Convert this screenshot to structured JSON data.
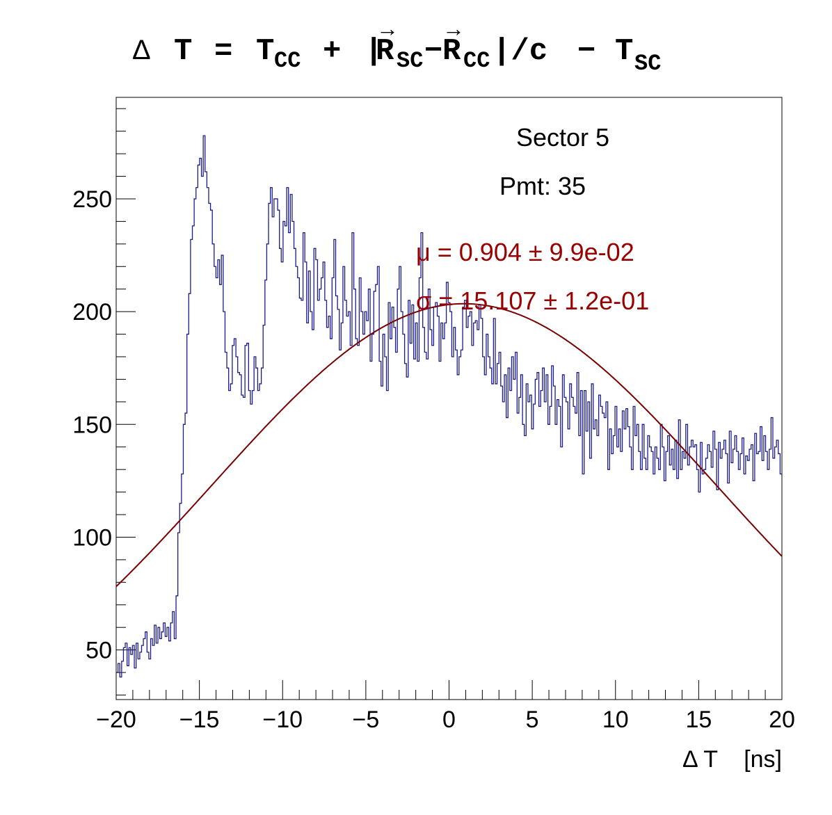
{
  "chart_data": {
    "type": "line",
    "title": {
      "delta": "Δ",
      "T": "T",
      "eq": "=",
      "tcc": "T",
      "tcc_sub": "CC",
      "plus": "+",
      "bar": "|",
      "r1": "R",
      "r1_sub": "SC",
      "minus1": "−",
      "r2": "R",
      "r2_sub": "CC",
      "overc": "|/c",
      "minus2": "−",
      "tsc": "T",
      "tsc_sub": "SC",
      "arrow": "→"
    },
    "xlabel": "Δ T    [ns]",
    "ylabel": "",
    "xlim": [
      -20,
      20
    ],
    "ylim": [
      28,
      295
    ],
    "xticks": [
      -20,
      -15,
      -10,
      -5,
      0,
      5,
      10,
      15,
      20
    ],
    "xtick_labels": [
      "−20",
      "−15",
      "−10",
      "−5",
      "0",
      "5",
      "10",
      "15",
      "20"
    ],
    "yticks": [
      50,
      100,
      150,
      200,
      250
    ],
    "ytick_labels": [
      "50",
      "100",
      "150",
      "200",
      "250"
    ],
    "grid": false,
    "annotations": {
      "sector": "Sector 5",
      "pmt": "Pmt: 35",
      "mu": "μ = 0.904 ± 9.9e-02",
      "sigma": "σ = 15.107 ± 1.2e-01"
    },
    "colors": {
      "histogram": "#1a1a8c",
      "fit": "#7a0000",
      "fit_text": "#990000",
      "axes": "#000000"
    },
    "series": [
      {
        "type": "step",
        "bin_edges": [
          -20,
          20
        ],
        "counts": [
          40,
          44,
          38,
          45,
          51,
          53,
          43,
          51,
          48,
          52,
          42,
          53,
          46,
          49,
          52,
          55,
          58,
          49,
          46,
          55,
          52,
          61,
          53,
          60,
          55,
          58,
          62,
          56,
          60,
          54,
          62,
          67,
          55,
          74,
          102,
          115,
          128,
          150,
          155,
          190,
          208,
          232,
          238,
          250,
          255,
          265,
          268,
          260,
          278,
          262,
          255,
          248,
          245,
          230,
          220,
          215,
          223,
          212,
          225,
          200,
          182,
          175,
          165,
          168,
          185,
          188,
          180,
          173,
          172,
          163,
          162,
          185,
          186,
          165,
          159,
          165,
          180,
          175,
          165,
          168,
          175,
          194,
          214,
          230,
          248,
          255,
          242,
          250,
          250,
          245,
          228,
          222,
          240,
          238,
          255,
          235,
          252,
          240,
          228,
          220,
          215,
          206,
          205,
          235,
          222,
          195,
          218,
          200,
          192,
          228,
          223,
          205,
          210,
          215,
          222,
          205,
          193,
          198,
          188,
          215,
          232,
          207,
          201,
          183,
          195,
          220,
          205,
          198,
          200,
          185,
          235,
          210,
          188,
          185,
          215,
          200,
          190,
          200,
          196,
          210,
          178,
          190,
          209,
          212,
          220,
          178,
          167,
          190,
          180,
          165,
          204,
          188,
          202,
          193,
          182,
          210,
          220,
          200,
          190,
          177,
          171,
          205,
          186,
          203,
          179,
          195,
          178,
          215,
          235,
          193,
          182,
          179,
          210,
          192,
          185,
          202,
          204,
          198,
          178,
          195,
          188,
          195,
          213,
          204,
          200,
          180,
          193,
          183,
          172,
          180,
          183,
          202,
          205,
          193,
          198,
          200,
          185,
          195,
          196,
          192,
          203,
          197,
          180,
          172,
          190,
          180,
          175,
          168,
          197,
          168,
          177,
          182,
          167,
          160,
          172,
          153,
          175,
          165,
          180,
          170,
          182,
          155,
          162,
          172,
          150,
          145,
          168,
          160,
          163,
          148,
          159,
          170,
          173,
          158,
          165,
          175,
          160,
          172,
          150,
          158,
          176,
          167,
          150,
          161,
          158,
          140,
          172,
          162,
          160,
          148,
          168,
          162,
          158,
          155,
          173,
          145,
          165,
          128,
          165,
          147,
          160,
          135,
          168,
          148,
          152,
          145,
          163,
          158,
          155,
          153,
          160,
          130,
          148,
          137,
          145,
          158,
          140,
          148,
          138,
          156,
          148,
          157,
          149,
          140,
          130,
          158,
          145,
          150,
          138,
          130,
          150,
          135,
          130,
          145,
          140,
          138,
          128,
          140,
          135,
          130,
          150,
          140,
          125,
          138,
          145,
          132,
          139,
          130,
          143,
          126,
          152,
          130,
          138,
          135,
          150,
          132,
          140,
          143,
          140,
          141,
          130,
          120,
          142,
          128,
          130,
          135,
          141,
          138,
          131,
          147,
          139,
          121,
          142,
          135,
          139,
          143,
          137,
          124,
          147,
          133,
          139,
          145,
          138,
          130,
          137,
          144,
          128,
          136,
          134,
          139,
          141,
          125,
          146,
          137,
          138,
          149,
          134,
          145,
          138,
          130,
          139,
          153,
          135,
          140,
          143,
          137,
          128
        ]
      },
      {
        "type": "gauss_fit",
        "name": "",
        "mu": 0.904,
        "sigma": 15.107,
        "amplitude": 203.5,
        "x_range": [
          -20,
          20
        ]
      }
    ]
  }
}
